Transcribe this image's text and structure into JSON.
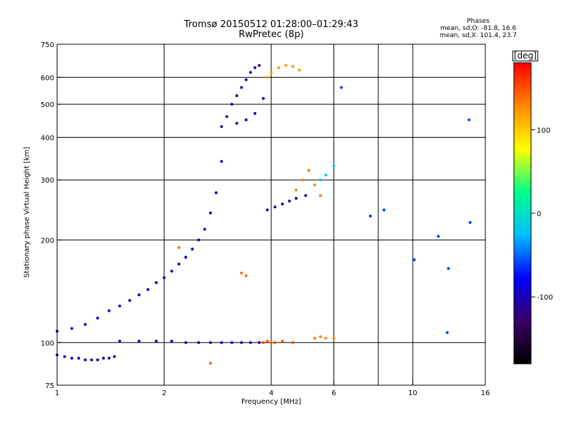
{
  "header": {
    "title_line1": "Tromsø 20150512 01:28:00–01:29:43",
    "title_line2": "RwPretec (8p)",
    "info_title": "Phases",
    "info_line1": "mean, sd,O: -81.8, 16.6",
    "info_line2": "mean, sd,X: 101.4, 23.7"
  },
  "colorbar": {
    "label": "[deg]",
    "ticks": [
      {
        "value": 100,
        "label": "100"
      },
      {
        "value": 0,
        "label": "0"
      },
      {
        "value": -100,
        "label": "-100"
      }
    ],
    "range": [
      -180,
      180
    ],
    "colors": [
      "#000000",
      "#3b0066",
      "#0000ff",
      "#00bfff",
      "#00ff88",
      "#ffff00",
      "#ff8800",
      "#ff0000"
    ]
  },
  "chart_data": {
    "type": "scatter",
    "title": "Tromsø 20150512 01:28:00–01:29:43",
    "subtitle": "RwPretec (8p)",
    "xlabel": "Frequency [MHz]",
    "ylabel": "Stationary phase Virtual Height [km]",
    "x_scale": "log",
    "y_scale": "log",
    "xlim": [
      1,
      16
    ],
    "ylim": [
      75,
      750
    ],
    "x_ticks": [
      {
        "value": 1,
        "label": "1"
      },
      {
        "value": 2,
        "label": "2"
      },
      {
        "value": 4,
        "label": "4"
      },
      {
        "value": 6,
        "label": "6"
      },
      {
        "value": 8,
        "label": ""
      },
      {
        "value": 10,
        "label": "10"
      },
      {
        "value": 16,
        "label": "16"
      }
    ],
    "x_grid": [
      2,
      4,
      6,
      8,
      10
    ],
    "y_ticks": [
      75,
      100,
      200,
      300,
      400,
      500,
      600,
      750
    ],
    "y_grid": [
      100,
      200,
      300,
      400,
      500,
      600
    ],
    "color_encoding": "Phase [deg]",
    "series": [
      {
        "x": [
          1.0,
          1.05,
          1.1,
          1.15,
          1.2,
          1.25,
          1.3,
          1.35,
          1.4,
          1.45
        ],
        "y": [
          92,
          91,
          90,
          90,
          89,
          89,
          89,
          90,
          90,
          91
        ],
        "phase": -105
      },
      {
        "x": [
          1.5,
          1.7,
          1.9,
          2.1,
          2.3,
          2.5,
          2.7,
          2.9,
          3.1,
          3.3,
          3.5,
          3.7
        ],
        "y": [
          101,
          101,
          101,
          101,
          100,
          100,
          100,
          100,
          100,
          100,
          100,
          100
        ],
        "phase": -105
      },
      {
        "x": [
          3.8,
          3.9,
          4.0,
          4.1,
          4.3,
          4.6
        ],
        "y": [
          100,
          101,
          100,
          100,
          101,
          100
        ],
        "phase": 150
      },
      {
        "x": [
          5.3,
          5.5,
          5.7,
          6.0
        ],
        "y": [
          103,
          104,
          103,
          103
        ],
        "phase": 130
      },
      {
        "x": [
          1.0,
          1.1,
          1.2,
          1.3,
          1.4,
          1.5,
          1.6,
          1.7,
          1.8,
          1.9
        ],
        "y": [
          108,
          110,
          113,
          118,
          124,
          128,
          133,
          138,
          143,
          150
        ],
        "phase": -90
      },
      {
        "x": [
          2.0,
          2.1,
          2.2,
          2.3,
          2.4,
          2.5,
          2.6,
          2.7,
          2.8,
          2.9
        ],
        "y": [
          155,
          162,
          170,
          178,
          188,
          200,
          215,
          240,
          275,
          340
        ],
        "phase": -95
      },
      {
        "x": [
          2.9,
          3.0,
          3.1,
          3.2,
          3.3,
          3.4,
          3.5,
          3.6,
          3.7
        ],
        "y": [
          430,
          460,
          500,
          530,
          560,
          590,
          620,
          640,
          650
        ],
        "phase": -110
      },
      {
        "x": [
          3.2,
          3.4,
          3.6,
          3.8
        ],
        "y": [
          440,
          450,
          470,
          520
        ],
        "phase": -95
      },
      {
        "x": [
          3.9,
          4.0,
          4.2,
          4.4,
          4.6,
          4.8
        ],
        "y": [
          600,
          620,
          640,
          650,
          645,
          630
        ],
        "phase": 120
      },
      {
        "x": [
          3.9,
          4.1,
          4.3,
          4.5,
          4.7,
          5.0
        ],
        "y": [
          245,
          250,
          255,
          260,
          265,
          270
        ],
        "phase": -110
      },
      {
        "x": [
          4.7,
          4.9,
          5.1,
          5.3,
          5.5
        ],
        "y": [
          280,
          300,
          320,
          290,
          270
        ],
        "phase": 130
      },
      {
        "x": [
          5.5,
          5.7,
          6.0
        ],
        "y": [
          300,
          310,
          330
        ],
        "phase": -10
      },
      {
        "x": [
          6.3,
          7.6,
          8.3,
          10.1,
          12.6,
          14.5,
          12.5,
          14.4,
          11.8
        ],
        "y": [
          560,
          235,
          245,
          175,
          165,
          225,
          107,
          450,
          205
        ],
        "phase": -60
      },
      {
        "x": [
          3.3,
          3.4,
          2.7,
          2.2
        ],
        "y": [
          160,
          157,
          87,
          190
        ],
        "phase": 140
      }
    ]
  }
}
